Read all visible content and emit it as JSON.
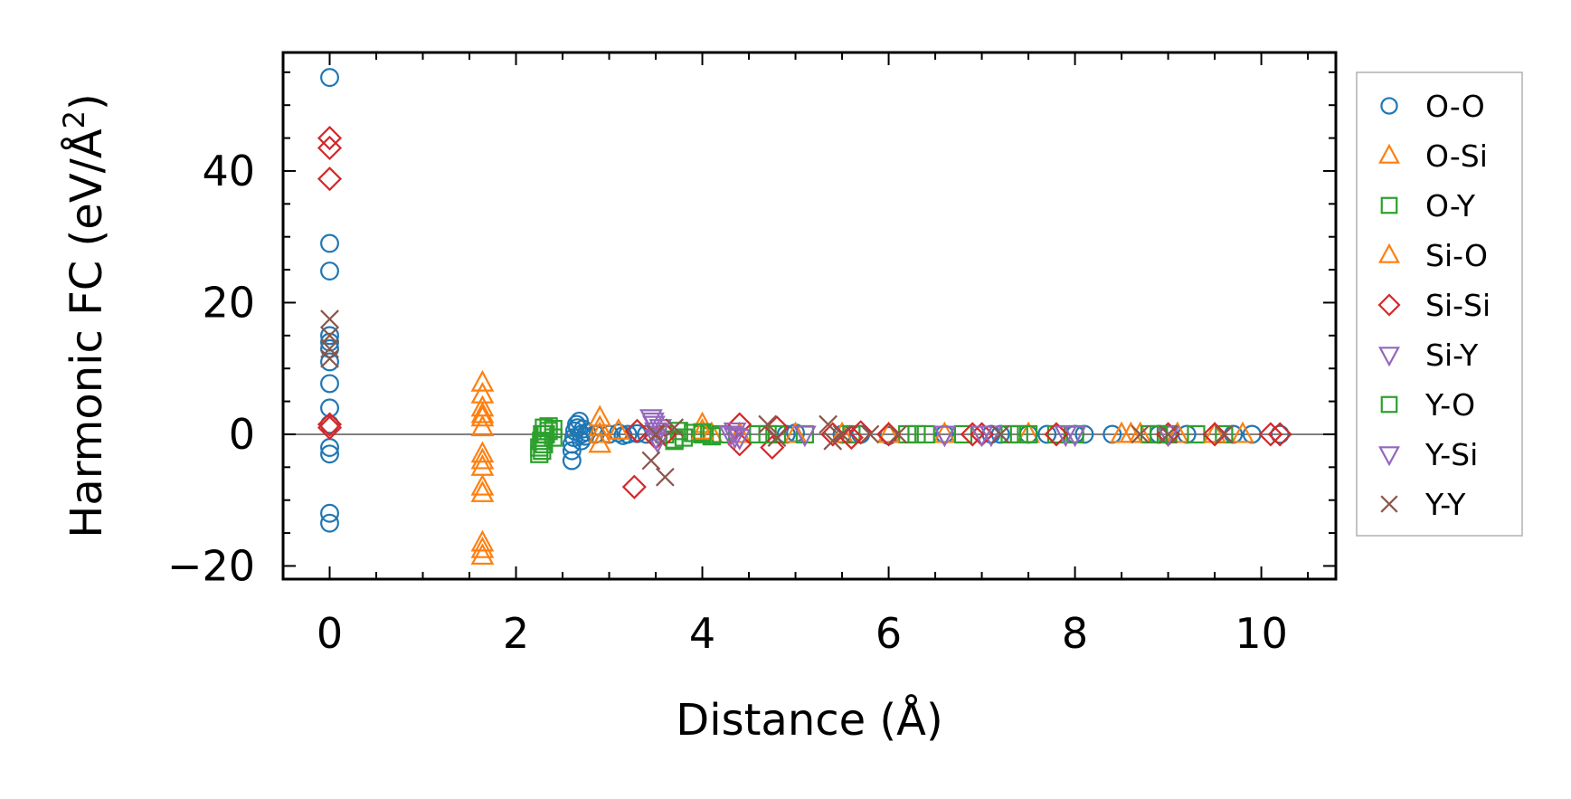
{
  "chart_data": {
    "type": "scatter",
    "xlabel": "Distance (Å)",
    "ylabel_main": "Harmonic FC (eV/Å",
    "ylabel_sup": "2",
    "ylabel_close": ")",
    "xlim": [
      -0.5,
      10.8
    ],
    "ylim": [
      -22,
      58
    ],
    "xticks": [
      0,
      2,
      4,
      6,
      8,
      10
    ],
    "xtick_labels": [
      "0",
      "2",
      "4",
      "6",
      "8",
      "10"
    ],
    "yticks": [
      -20,
      0,
      20,
      40
    ],
    "ytick_labels": [
      "−20",
      "0",
      "20",
      "40"
    ],
    "grid": false,
    "zero_line": true,
    "legend_position": "right-outside",
    "series": [
      {
        "name": "O-O",
        "marker": "circle",
        "color": "#1f77b4",
        "points": [
          [
            0,
            54.2
          ],
          [
            0,
            29
          ],
          [
            0,
            24.8
          ],
          [
            0,
            15
          ],
          [
            0,
            14
          ],
          [
            0,
            13
          ],
          [
            0,
            11
          ],
          [
            0,
            7.7
          ],
          [
            0,
            4
          ],
          [
            0,
            1.5
          ],
          [
            0,
            -2
          ],
          [
            0,
            -3
          ],
          [
            0,
            -12
          ],
          [
            0,
            -13.5
          ],
          [
            2.6,
            -4
          ],
          [
            2.6,
            -2.5
          ],
          [
            2.6,
            -1.5
          ],
          [
            2.62,
            -0.5
          ],
          [
            2.63,
            0.5
          ],
          [
            2.65,
            1.5
          ],
          [
            2.66,
            1
          ],
          [
            2.68,
            2
          ],
          [
            2.7,
            0
          ],
          [
            2.7,
            -1
          ],
          [
            2.72,
            0.8
          ],
          [
            2.74,
            -0.3
          ],
          [
            2.76,
            0.3
          ],
          [
            2.85,
            0
          ],
          [
            3.0,
            0
          ],
          [
            3.1,
            0.2
          ],
          [
            3.15,
            -0.2
          ],
          [
            3.2,
            0
          ],
          [
            3.3,
            0.1
          ],
          [
            3.4,
            0
          ],
          [
            4.9,
            0
          ],
          [
            5.0,
            0.2
          ],
          [
            5.5,
            0
          ],
          [
            5.7,
            0
          ],
          [
            6.0,
            -0.2
          ],
          [
            6.6,
            0
          ],
          [
            7.1,
            0
          ],
          [
            7.2,
            0
          ],
          [
            7.5,
            0
          ],
          [
            7.7,
            0
          ],
          [
            8.0,
            0
          ],
          [
            8.1,
            0
          ],
          [
            8.4,
            0
          ],
          [
            8.9,
            0
          ],
          [
            9.2,
            0
          ],
          [
            9.7,
            0
          ],
          [
            9.9,
            0
          ],
          [
            10.2,
            0
          ]
        ]
      },
      {
        "name": "O-Si",
        "marker": "triangle-up",
        "color": "#ff7f0e",
        "points": [
          [
            1.64,
            7.8
          ],
          [
            1.64,
            4
          ],
          [
            1.64,
            2.5
          ],
          [
            1.64,
            1
          ],
          [
            1.64,
            -3
          ],
          [
            1.64,
            -4
          ],
          [
            1.64,
            -8
          ],
          [
            1.64,
            -9
          ],
          [
            1.64,
            -16.5
          ],
          [
            1.64,
            -18.5
          ],
          [
            2.9,
            2.5
          ],
          [
            2.9,
            0
          ],
          [
            2.9,
            -1.5
          ],
          [
            3.1,
            0.5
          ],
          [
            4.0,
            1.5
          ],
          [
            4.1,
            0
          ],
          [
            4.4,
            0
          ],
          [
            5.0,
            0
          ],
          [
            5.5,
            0
          ],
          [
            6.6,
            0
          ],
          [
            7.5,
            0
          ],
          [
            8.5,
            0
          ],
          [
            8.7,
            0
          ],
          [
            9.1,
            0
          ],
          [
            9.8,
            0
          ]
        ]
      },
      {
        "name": "O-Y",
        "marker": "square",
        "color": "#2ca02c",
        "points": [
          [
            2.25,
            -3
          ],
          [
            2.25,
            -2
          ],
          [
            2.27,
            -1
          ],
          [
            2.28,
            0
          ],
          [
            2.3,
            1
          ],
          [
            2.3,
            -1.5
          ],
          [
            2.35,
            0.5
          ],
          [
            2.4,
            -0.5
          ],
          [
            2.4,
            0.8
          ],
          [
            3.6,
            0
          ],
          [
            3.7,
            -1
          ],
          [
            3.75,
            0.5
          ],
          [
            3.8,
            -0.5
          ],
          [
            3.9,
            0.2
          ],
          [
            4.0,
            0
          ],
          [
            4.1,
            -0.3
          ],
          [
            4.2,
            0
          ],
          [
            4.6,
            0
          ],
          [
            4.8,
            0
          ],
          [
            5.1,
            0
          ],
          [
            5.6,
            0
          ],
          [
            6.2,
            0
          ],
          [
            6.3,
            0
          ],
          [
            6.8,
            0
          ],
          [
            7.3,
            0
          ],
          [
            7.5,
            0
          ],
          [
            7.8,
            0
          ],
          [
            8.0,
            0
          ],
          [
            8.8,
            0
          ],
          [
            9.0,
            0
          ],
          [
            9.3,
            0
          ],
          [
            9.6,
            0
          ]
        ]
      },
      {
        "name": "Si-O",
        "marker": "triangle-up",
        "color": "#ff7f0e",
        "points": [
          [
            1.64,
            6
          ],
          [
            1.64,
            3
          ],
          [
            1.64,
            -5
          ],
          [
            1.64,
            -17.5
          ],
          [
            2.9,
            1
          ],
          [
            4.0,
            0.5
          ],
          [
            6.0,
            0
          ],
          [
            8.6,
            0
          ],
          [
            9.5,
            0
          ]
        ]
      },
      {
        "name": "Si-Si",
        "marker": "diamond",
        "color": "#d62728",
        "points": [
          [
            0,
            45
          ],
          [
            0,
            43.5
          ],
          [
            0,
            38.8
          ],
          [
            0,
            1.5
          ],
          [
            0,
            1
          ],
          [
            3.27,
            -8
          ],
          [
            3.3,
            0.5
          ],
          [
            3.5,
            -0.5
          ],
          [
            3.6,
            0
          ],
          [
            4.4,
            1.5
          ],
          [
            4.4,
            -1.5
          ],
          [
            4.75,
            -2
          ],
          [
            4.8,
            1
          ],
          [
            5.4,
            0
          ],
          [
            5.6,
            -0.5
          ],
          [
            5.7,
            0.3
          ],
          [
            6.0,
            0
          ],
          [
            6.9,
            0
          ],
          [
            7.0,
            0
          ],
          [
            7.8,
            0
          ],
          [
            9.0,
            0
          ],
          [
            9.5,
            0
          ],
          [
            10.1,
            0
          ],
          [
            10.2,
            0
          ]
        ]
      },
      {
        "name": "Si-Y",
        "marker": "triangle-down",
        "color": "#9467bd",
        "points": [
          [
            3.45,
            2.5
          ],
          [
            3.48,
            1.5
          ],
          [
            3.5,
            0.5
          ],
          [
            3.5,
            -0.5
          ],
          [
            3.55,
            1
          ],
          [
            4.3,
            0
          ],
          [
            4.35,
            0.5
          ],
          [
            4.4,
            -0.5
          ],
          [
            5.1,
            0
          ],
          [
            6.6,
            0
          ],
          [
            7.1,
            0
          ],
          [
            7.9,
            0
          ],
          [
            9.0,
            0
          ]
        ]
      },
      {
        "name": "Y-O",
        "marker": "square",
        "color": "#2ca02c",
        "points": [
          [
            2.28,
            -2.5
          ],
          [
            2.32,
            0
          ],
          [
            2.35,
            1.2
          ],
          [
            3.7,
            -0.8
          ],
          [
            4.0,
            0.3
          ],
          [
            4.7,
            0
          ],
          [
            6.4,
            0
          ],
          [
            7.4,
            0
          ],
          [
            8.9,
            0
          ]
        ]
      },
      {
        "name": "Y-Si",
        "marker": "triangle-down",
        "color": "#9467bd",
        "points": [
          [
            3.47,
            2
          ],
          [
            3.52,
            -1
          ],
          [
            4.35,
            -0.3
          ],
          [
            6.6,
            0
          ],
          [
            7.0,
            0
          ],
          [
            8.0,
            0
          ]
        ]
      },
      {
        "name": "Y-Y",
        "marker": "x",
        "color": "#8c564b",
        "points": [
          [
            0,
            17.5
          ],
          [
            0,
            15
          ],
          [
            0,
            13
          ],
          [
            0,
            11.5
          ],
          [
            3.45,
            -4
          ],
          [
            3.5,
            0
          ],
          [
            3.6,
            -6.5
          ],
          [
            3.7,
            1
          ],
          [
            4.7,
            1.5
          ],
          [
            4.8,
            -0.5
          ],
          [
            5.35,
            1.5
          ],
          [
            5.4,
            -1
          ],
          [
            5.5,
            0
          ],
          [
            5.8,
            0
          ],
          [
            6.1,
            0
          ],
          [
            7.2,
            0
          ],
          [
            8.7,
            0
          ],
          [
            9.0,
            0
          ],
          [
            9.6,
            0
          ]
        ]
      }
    ]
  }
}
